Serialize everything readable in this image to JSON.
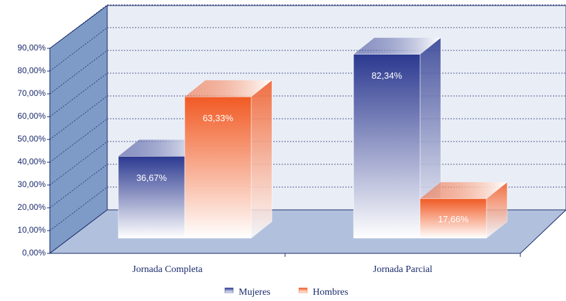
{
  "chart_data": {
    "type": "bar3d",
    "categories": [
      "Jornada Completa",
      "Jornada Parcial"
    ],
    "series": [
      {
        "name": "Mujeres",
        "color": "#2b3990",
        "values": [
          36.67,
          82.34
        ],
        "value_labels": [
          "36,67%",
          "82,34%"
        ]
      },
      {
        "name": "Hombres",
        "color": "#f15a24",
        "values": [
          63.33,
          17.66
        ],
        "value_labels": [
          "63,33%",
          "17,66%"
        ]
      }
    ],
    "ylim": [
      0,
      90
    ],
    "yticks": [
      {
        "value": 0,
        "label": "0,00%"
      },
      {
        "value": 10,
        "label": "10,00%"
      },
      {
        "value": 20,
        "label": "20,00%"
      },
      {
        "value": 30,
        "label": "30,00%"
      },
      {
        "value": 40,
        "label": "40,00%"
      },
      {
        "value": 50,
        "label": "50,00%"
      },
      {
        "value": 60,
        "label": "60,00%"
      },
      {
        "value": 70,
        "label": "70,00%"
      },
      {
        "value": 80,
        "label": "80,00%"
      },
      {
        "value": 90,
        "label": "90,00%"
      }
    ],
    "grid": true,
    "legend": "bottom"
  }
}
